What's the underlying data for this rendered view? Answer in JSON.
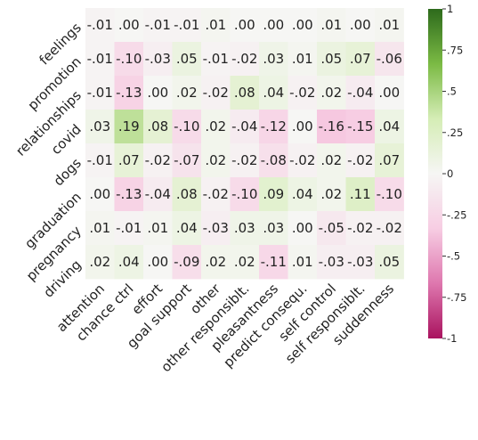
{
  "chart_data": {
    "type": "heatmap",
    "title": "",
    "xlabel": "",
    "ylabel": "",
    "x_categories": [
      "attention",
      "chance ctrl",
      "effort",
      "goal support",
      "other",
      "other responsiblt.",
      "pleasantness",
      "predict consequ.",
      "self control",
      "self responsiblt.",
      "suddenness"
    ],
    "y_categories": [
      "feelings",
      "promotion",
      "relationships",
      "covid",
      "dogs",
      "graduation",
      "pregnancy",
      "driving"
    ],
    "values": [
      [
        -0.01,
        0.0,
        -0.01,
        -0.01,
        0.01,
        0.0,
        0.0,
        0.0,
        0.01,
        0.0,
        0.01
      ],
      [
        -0.01,
        -0.1,
        -0.03,
        0.05,
        -0.01,
        -0.02,
        0.03,
        0.01,
        0.05,
        0.07,
        -0.06
      ],
      [
        -0.01,
        -0.13,
        0.0,
        0.02,
        -0.02,
        0.08,
        0.04,
        -0.02,
        0.02,
        -0.04,
        0.0
      ],
      [
        0.03,
        0.19,
        0.08,
        -0.1,
        0.02,
        -0.04,
        -0.12,
        0.0,
        -0.16,
        -0.15,
        0.04
      ],
      [
        -0.01,
        0.07,
        -0.02,
        -0.07,
        0.02,
        -0.02,
        -0.08,
        -0.02,
        0.02,
        -0.02,
        0.07
      ],
      [
        0.0,
        -0.13,
        -0.04,
        0.08,
        -0.02,
        -0.1,
        0.09,
        0.04,
        0.02,
        0.11,
        -0.1
      ],
      [
        0.01,
        -0.01,
        0.01,
        0.04,
        -0.03,
        0.03,
        0.03,
        0.0,
        -0.05,
        -0.02,
        -0.02
      ],
      [
        0.02,
        0.04,
        0.0,
        -0.09,
        0.02,
        0.02,
        -0.11,
        0.01,
        -0.03,
        -0.03,
        0.05
      ]
    ],
    "value_range": [
      -1,
      1
    ],
    "colormap": "PiYG",
    "colorbar": {
      "ticks": [
        1,
        0.75,
        0.5,
        0.25,
        0,
        -0.25,
        -0.5,
        -0.75,
        -1
      ],
      "tick_labels": [
        "1",
        ".75",
        ".5",
        ".25",
        "0",
        "-.25",
        "-.5",
        "-.75",
        "-1"
      ],
      "colors": [
        "#2d6a1c",
        "#7bba44",
        "#d5edb6",
        "#f6f6f4",
        "#f7cde3",
        "#de77ae",
        "#a9135f"
      ]
    },
    "grid": false,
    "legend": "colorbar right"
  }
}
